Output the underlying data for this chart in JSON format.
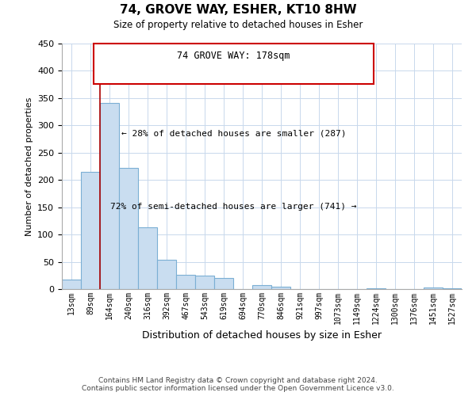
{
  "title": "74, GROVE WAY, ESHER, KT10 8HW",
  "subtitle": "Size of property relative to detached houses in Esher",
  "xlabel": "Distribution of detached houses by size in Esher",
  "ylabel": "Number of detached properties",
  "categories": [
    "13sqm",
    "89sqm",
    "164sqm",
    "240sqm",
    "316sqm",
    "392sqm",
    "467sqm",
    "543sqm",
    "619sqm",
    "694sqm",
    "770sqm",
    "846sqm",
    "921sqm",
    "997sqm",
    "1073sqm",
    "1149sqm",
    "1224sqm",
    "1300sqm",
    "1376sqm",
    "1451sqm",
    "1527sqm"
  ],
  "values": [
    18,
    215,
    341,
    222,
    113,
    53,
    26,
    25,
    20,
    0,
    7,
    5,
    0,
    0,
    0,
    0,
    2,
    0,
    0,
    3,
    2
  ],
  "bar_color": "#c9ddf0",
  "bar_edge_color": "#7bafd4",
  "vline_color": "#aa0000",
  "annotation_line1": "74 GROVE WAY: 178sqm",
  "annotation_line2": "← 28% of detached houses are smaller (287)",
  "annotation_line3": "72% of semi-detached houses are larger (741) →",
  "ylim": [
    0,
    450
  ],
  "yticks": [
    0,
    50,
    100,
    150,
    200,
    250,
    300,
    350,
    400,
    450
  ],
  "footer_line1": "Contains HM Land Registry data © Crown copyright and database right 2024.",
  "footer_line2": "Contains public sector information licensed under the Open Government Licence v3.0.",
  "background_color": "#ffffff",
  "grid_color": "#c8d8ec"
}
